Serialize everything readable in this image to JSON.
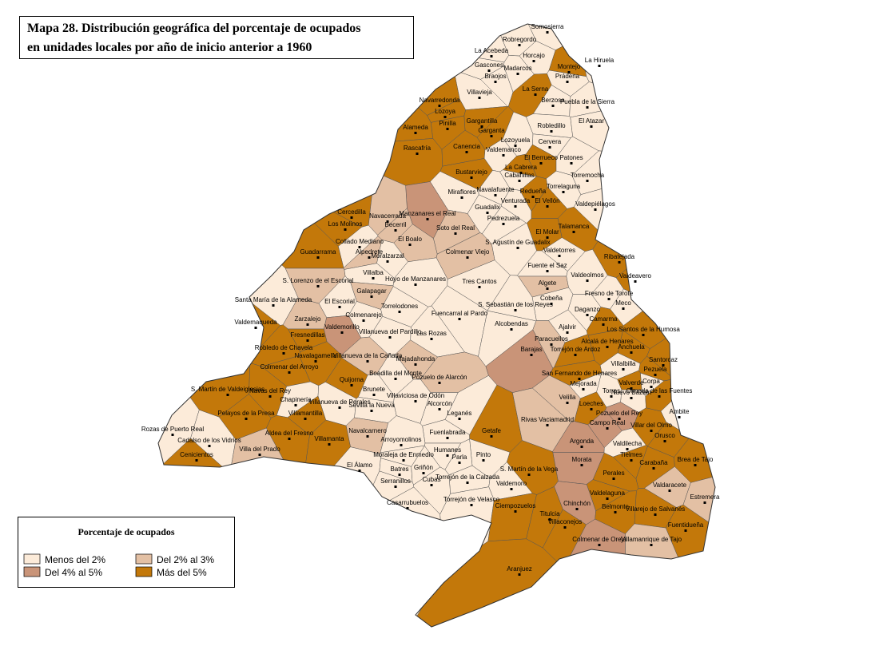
{
  "title": [
    "Mapa 28. Distribución geográfica del porcentaje de ocupados",
    "en unidades locales por año de inicio anterior a 1960"
  ],
  "legend": {
    "title": "Porcentaje de ocupados",
    "items": [
      {
        "label": "Menos del 2%",
        "color": "#fcebd9"
      },
      {
        "label": "Del 2% al 3%",
        "color": "#e3c0a4"
      },
      {
        "label": "Del 4% al 5%",
        "color": "#c99478"
      },
      {
        "label": "Más del 5%",
        "color": "#c3780a"
      }
    ]
  },
  "municipalities": [
    {
      "name": "Somosierra",
      "level": 0
    },
    {
      "name": "Robregordo",
      "level": 0
    },
    {
      "name": "La Acebeda",
      "level": 0
    },
    {
      "name": "Horcajo",
      "level": 0
    },
    {
      "name": "La Hiruela",
      "level": 0
    },
    {
      "name": "Montejo",
      "level": 3
    },
    {
      "name": "Madarcos",
      "level": 0
    },
    {
      "name": "Braojos",
      "level": 0
    },
    {
      "name": "Prádena",
      "level": 0
    },
    {
      "name": "Villavieja",
      "level": 0
    },
    {
      "name": "La Serna",
      "level": 3
    },
    {
      "name": "Berzosa",
      "level": 0
    },
    {
      "name": "Puebla de la Sierra",
      "level": 0
    },
    {
      "name": "Navarredonda",
      "level": 3
    },
    {
      "name": "Gascones",
      "level": 0
    },
    {
      "name": "Gargantilla",
      "level": 3
    },
    {
      "name": "Lozoya",
      "level": 3
    },
    {
      "name": "Pinilla",
      "level": 3
    },
    {
      "name": "Alameda",
      "level": 3
    },
    {
      "name": "Garganta",
      "level": 3
    },
    {
      "name": "Robledillo",
      "level": 0
    },
    {
      "name": "El Atazar",
      "level": 0
    },
    {
      "name": "Lozoyuela",
      "level": 0
    },
    {
      "name": "Rascafría",
      "level": 3
    },
    {
      "name": "Canencia",
      "level": 3
    },
    {
      "name": "Cervera",
      "level": 0
    },
    {
      "name": "Valdemanco",
      "level": 0
    },
    {
      "name": "El Berrueco",
      "level": 3
    },
    {
      "name": "Patones",
      "level": 0
    },
    {
      "name": "Bustarviejo",
      "level": 3
    },
    {
      "name": "Cabanillas",
      "level": 0
    },
    {
      "name": "La Cabrera",
      "level": 3
    },
    {
      "name": "Torremocha",
      "level": 0
    },
    {
      "name": "Miraflores",
      "level": 0
    },
    {
      "name": "Navalafuente",
      "level": 0
    },
    {
      "name": "Redueña",
      "level": 3
    },
    {
      "name": "Torrelaguna",
      "level": 0
    },
    {
      "name": "Valdepiélagos",
      "level": 0
    },
    {
      "name": "Guadalix",
      "level": 0
    },
    {
      "name": "Venturada",
      "level": 0
    },
    {
      "name": "El Vellón",
      "level": 3
    },
    {
      "name": "Pedrezuela",
      "level": 0
    },
    {
      "name": "Talamanca",
      "level": 3
    },
    {
      "name": "Manzanares el Real",
      "level": 2
    },
    {
      "name": "Soto del Real",
      "level": 1
    },
    {
      "name": "Cercedilla",
      "level": 3
    },
    {
      "name": "Navacerrada",
      "level": 1
    },
    {
      "name": "Becerril",
      "level": 1
    },
    {
      "name": "Los Molinos",
      "level": 3
    },
    {
      "name": "El Boalo",
      "level": 1
    },
    {
      "name": "El Molar",
      "level": 3
    },
    {
      "name": "S. Agustín de Guadalix",
      "level": 0
    },
    {
      "name": "Collado Mediano",
      "level": 0
    },
    {
      "name": "Alpedrete",
      "level": 1
    },
    {
      "name": "Guadarrama",
      "level": 3
    },
    {
      "name": "Moralzarzal",
      "level": 0
    },
    {
      "name": "Colmenar Viejo",
      "level": 1
    },
    {
      "name": "Valdetorres",
      "level": 0
    },
    {
      "name": "Fuente el Saz",
      "level": 0
    },
    {
      "name": "Ribatejada",
      "level": 3
    },
    {
      "name": "Villalba",
      "level": 0
    },
    {
      "name": "Hoyo de Manzanares",
      "level": 0
    },
    {
      "name": "Tres Cantos",
      "level": 0
    },
    {
      "name": "Algete",
      "level": 1
    },
    {
      "name": "Valdeolmos",
      "level": 0
    },
    {
      "name": "Valdeavero",
      "level": 3
    },
    {
      "name": "S. Lorenzo de el Escorial",
      "level": 1
    },
    {
      "name": "Galapagar",
      "level": 1
    },
    {
      "name": "Cobeña",
      "level": 0
    },
    {
      "name": "Fresno de Torote",
      "level": 0
    },
    {
      "name": "Santa María de la Alameda",
      "level": 0
    },
    {
      "name": "El Escorial",
      "level": 0
    },
    {
      "name": "Torrelodones",
      "level": 0
    },
    {
      "name": "S. Sebastián de los Reyes",
      "level": 0
    },
    {
      "name": "Meco",
      "level": 0
    },
    {
      "name": "Daganzo",
      "level": 0
    },
    {
      "name": "Fuencarral al Pardo",
      "level": 0
    },
    {
      "name": "Colmenarejo",
      "level": 0
    },
    {
      "name": "Alcobendas",
      "level": 0
    },
    {
      "name": "Zarzalejo",
      "level": 1
    },
    {
      "name": "Camarma",
      "level": 3
    },
    {
      "name": "Valdemaqueda",
      "level": 3
    },
    {
      "name": "Los Santos de la Humosa",
      "level": 3
    },
    {
      "name": "Valdemorillo",
      "level": 2
    },
    {
      "name": "Villanueva del Pardillo",
      "level": 0
    },
    {
      "name": "Ajalvir",
      "level": 0
    },
    {
      "name": "Las Rozas",
      "level": 0
    },
    {
      "name": "Fresnedillas",
      "level": 3
    },
    {
      "name": "Paracuellos",
      "level": 1
    },
    {
      "name": "Alcalá de Henares",
      "level": 3
    },
    {
      "name": "Anchuela",
      "level": 3
    },
    {
      "name": "Robledo de Chavela",
      "level": 3
    },
    {
      "name": "Torrejón de Ardoz",
      "level": 3
    },
    {
      "name": "Santorcaz",
      "level": 3
    },
    {
      "name": "Majadahonda",
      "level": 1
    },
    {
      "name": "Villanueva de la Cañada",
      "level": 1
    },
    {
      "name": "Barajas",
      "level": 2
    },
    {
      "name": "Navalagamella",
      "level": 3
    },
    {
      "name": "Villalbilla",
      "level": 0
    },
    {
      "name": "Pezuela",
      "level": 3
    },
    {
      "name": "Colmenar del Arroyo",
      "level": 3
    },
    {
      "name": "Boadilla del Monte",
      "level": 0
    },
    {
      "name": "Pozuelo de Alarcón",
      "level": 1
    },
    {
      "name": "Mejorada",
      "level": 0
    },
    {
      "name": "San Fernando de Henares",
      "level": 3
    },
    {
      "name": "Corpa",
      "level": 0
    },
    {
      "name": "Quijorna",
      "level": 3
    },
    {
      "name": "Nuevo Baztán",
      "level": 0
    },
    {
      "name": "Torres",
      "level": 0
    },
    {
      "name": "Valverde",
      "level": 3
    },
    {
      "name": "Olmeda de las Fuentes",
      "level": 3
    },
    {
      "name": "S. Martín de Valdeiglesias",
      "level": 3
    },
    {
      "name": "Navas del Rey",
      "level": 3
    },
    {
      "name": "Brunete",
      "level": 0
    },
    {
      "name": "Villaviciosa de Odón",
      "level": 0
    },
    {
      "name": "Sevilla la Nueva",
      "level": 0
    },
    {
      "name": "Velilla",
      "level": 1
    },
    {
      "name": "Chapinería",
      "level": 0
    },
    {
      "name": "Villanueva de Perales",
      "level": 0
    },
    {
      "name": "Loeches",
      "level": 3
    },
    {
      "name": "Alcorcón",
      "level": 0
    },
    {
      "name": "Pozuelo del Rey",
      "level": 2
    },
    {
      "name": "Ambite",
      "level": 0
    },
    {
      "name": "Pelayos de la Presa",
      "level": 3
    },
    {
      "name": "Villamantilla",
      "level": 3
    },
    {
      "name": "Leganés",
      "level": 0
    },
    {
      "name": "Rivas Vaciamadrid",
      "level": 1
    },
    {
      "name": "Campo Real",
      "level": 2
    },
    {
      "name": "Villar del Olmo",
      "level": 3
    },
    {
      "name": "Rozas de Puerto Real",
      "level": 0
    },
    {
      "name": "Aldea del Fresno",
      "level": 3
    },
    {
      "name": "Navalcarnero",
      "level": 1
    },
    {
      "name": "Fuenlabrada",
      "level": 0
    },
    {
      "name": "Getafe",
      "level": 3
    },
    {
      "name": "Orusco",
      "level": 3
    },
    {
      "name": "Cadalso de los Vidrios",
      "level": 0
    },
    {
      "name": "Argonda",
      "level": 2
    },
    {
      "name": "Valdilecha",
      "level": 0
    },
    {
      "name": "Arroyomolinos",
      "level": 0
    },
    {
      "name": "Villamanta",
      "level": 3
    },
    {
      "name": "Villa del Prado",
      "level": 1
    },
    {
      "name": "Humanes",
      "level": 0
    },
    {
      "name": "Moraleja de Enmedio",
      "level": 0
    },
    {
      "name": "Cenicientos",
      "level": 3
    },
    {
      "name": "Pinto",
      "level": 0
    },
    {
      "name": "Parla",
      "level": 0
    },
    {
      "name": "Tielmes",
      "level": 3
    },
    {
      "name": "Brea de Tajo",
      "level": 3
    },
    {
      "name": "Morata",
      "level": 2
    },
    {
      "name": "Carabaña",
      "level": 3
    },
    {
      "name": "S. Martín de la Vega",
      "level": 3
    },
    {
      "name": "El Álamo",
      "level": 0
    },
    {
      "name": "Batres",
      "level": 0
    },
    {
      "name": "Griñón",
      "level": 0
    },
    {
      "name": "Perales",
      "level": 3
    },
    {
      "name": "Serranillos",
      "level": 0
    },
    {
      "name": "Torrejón de la Calzada",
      "level": 0
    },
    {
      "name": "Cubas",
      "level": 0
    },
    {
      "name": "Valdaracete",
      "level": 1
    },
    {
      "name": "Valdemoro",
      "level": 0
    },
    {
      "name": "Estremera",
      "level": 1
    },
    {
      "name": "Torrejón de Velasco",
      "level": 0
    },
    {
      "name": "Casarrubuelos",
      "level": 0
    },
    {
      "name": "Valdelaguna",
      "level": 3
    },
    {
      "name": "Chinchón",
      "level": 2
    },
    {
      "name": "Belmonte",
      "level": 3
    },
    {
      "name": "Villarejo de Salvanés",
      "level": 3
    },
    {
      "name": "Ciempozuelos",
      "level": 3
    },
    {
      "name": "Titulcia",
      "level": 3
    },
    {
      "name": "Villaconejos",
      "level": 3
    },
    {
      "name": "Fuentidueña",
      "level": 3
    },
    {
      "name": "Colmenar de Oreja",
      "level": 2
    },
    {
      "name": "Villamanrique de Tajo",
      "level": 1
    },
    {
      "name": "Aranjuez",
      "level": 3
    }
  ]
}
